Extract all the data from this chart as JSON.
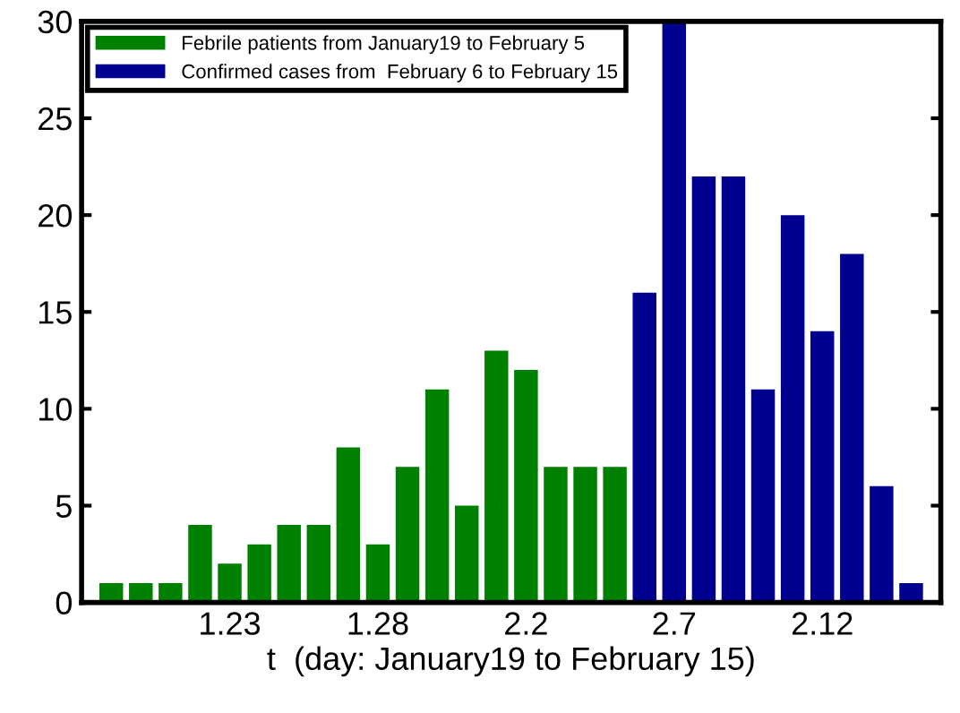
{
  "chart_data": {
    "type": "bar",
    "xlabel": "t  (day: January19 to February 15)",
    "categories": [
      null,
      null,
      null,
      null,
      "1.23",
      null,
      null,
      null,
      null,
      "1.28",
      null,
      null,
      null,
      null,
      "2.2",
      null,
      null,
      null,
      null,
      "2.7",
      null,
      null,
      null,
      null,
      "2.12",
      null,
      null,
      null
    ],
    "series": [
      {
        "name": "Febrile patients from January19 to February 5",
        "color": "#008000",
        "values": [
          1,
          1,
          1,
          4,
          2,
          3,
          4,
          4,
          8,
          3,
          7,
          11,
          5,
          13,
          12,
          7,
          7,
          7,
          null,
          null,
          null,
          null,
          null,
          null,
          null,
          null,
          null,
          null
        ]
      },
      {
        "name": "Confirmed cases from  February 6 to February 15",
        "color": "#000090",
        "values": [
          null,
          null,
          null,
          null,
          null,
          null,
          null,
          null,
          null,
          null,
          null,
          null,
          null,
          null,
          null,
          null,
          null,
          null,
          16,
          30,
          22,
          22,
          11,
          20,
          14,
          18,
          6,
          1
        ]
      }
    ],
    "ylim": [
      0,
      30
    ],
    "yticks": [
      0,
      5,
      10,
      15,
      20,
      25,
      30
    ],
    "grid": false,
    "legend": "top left"
  }
}
